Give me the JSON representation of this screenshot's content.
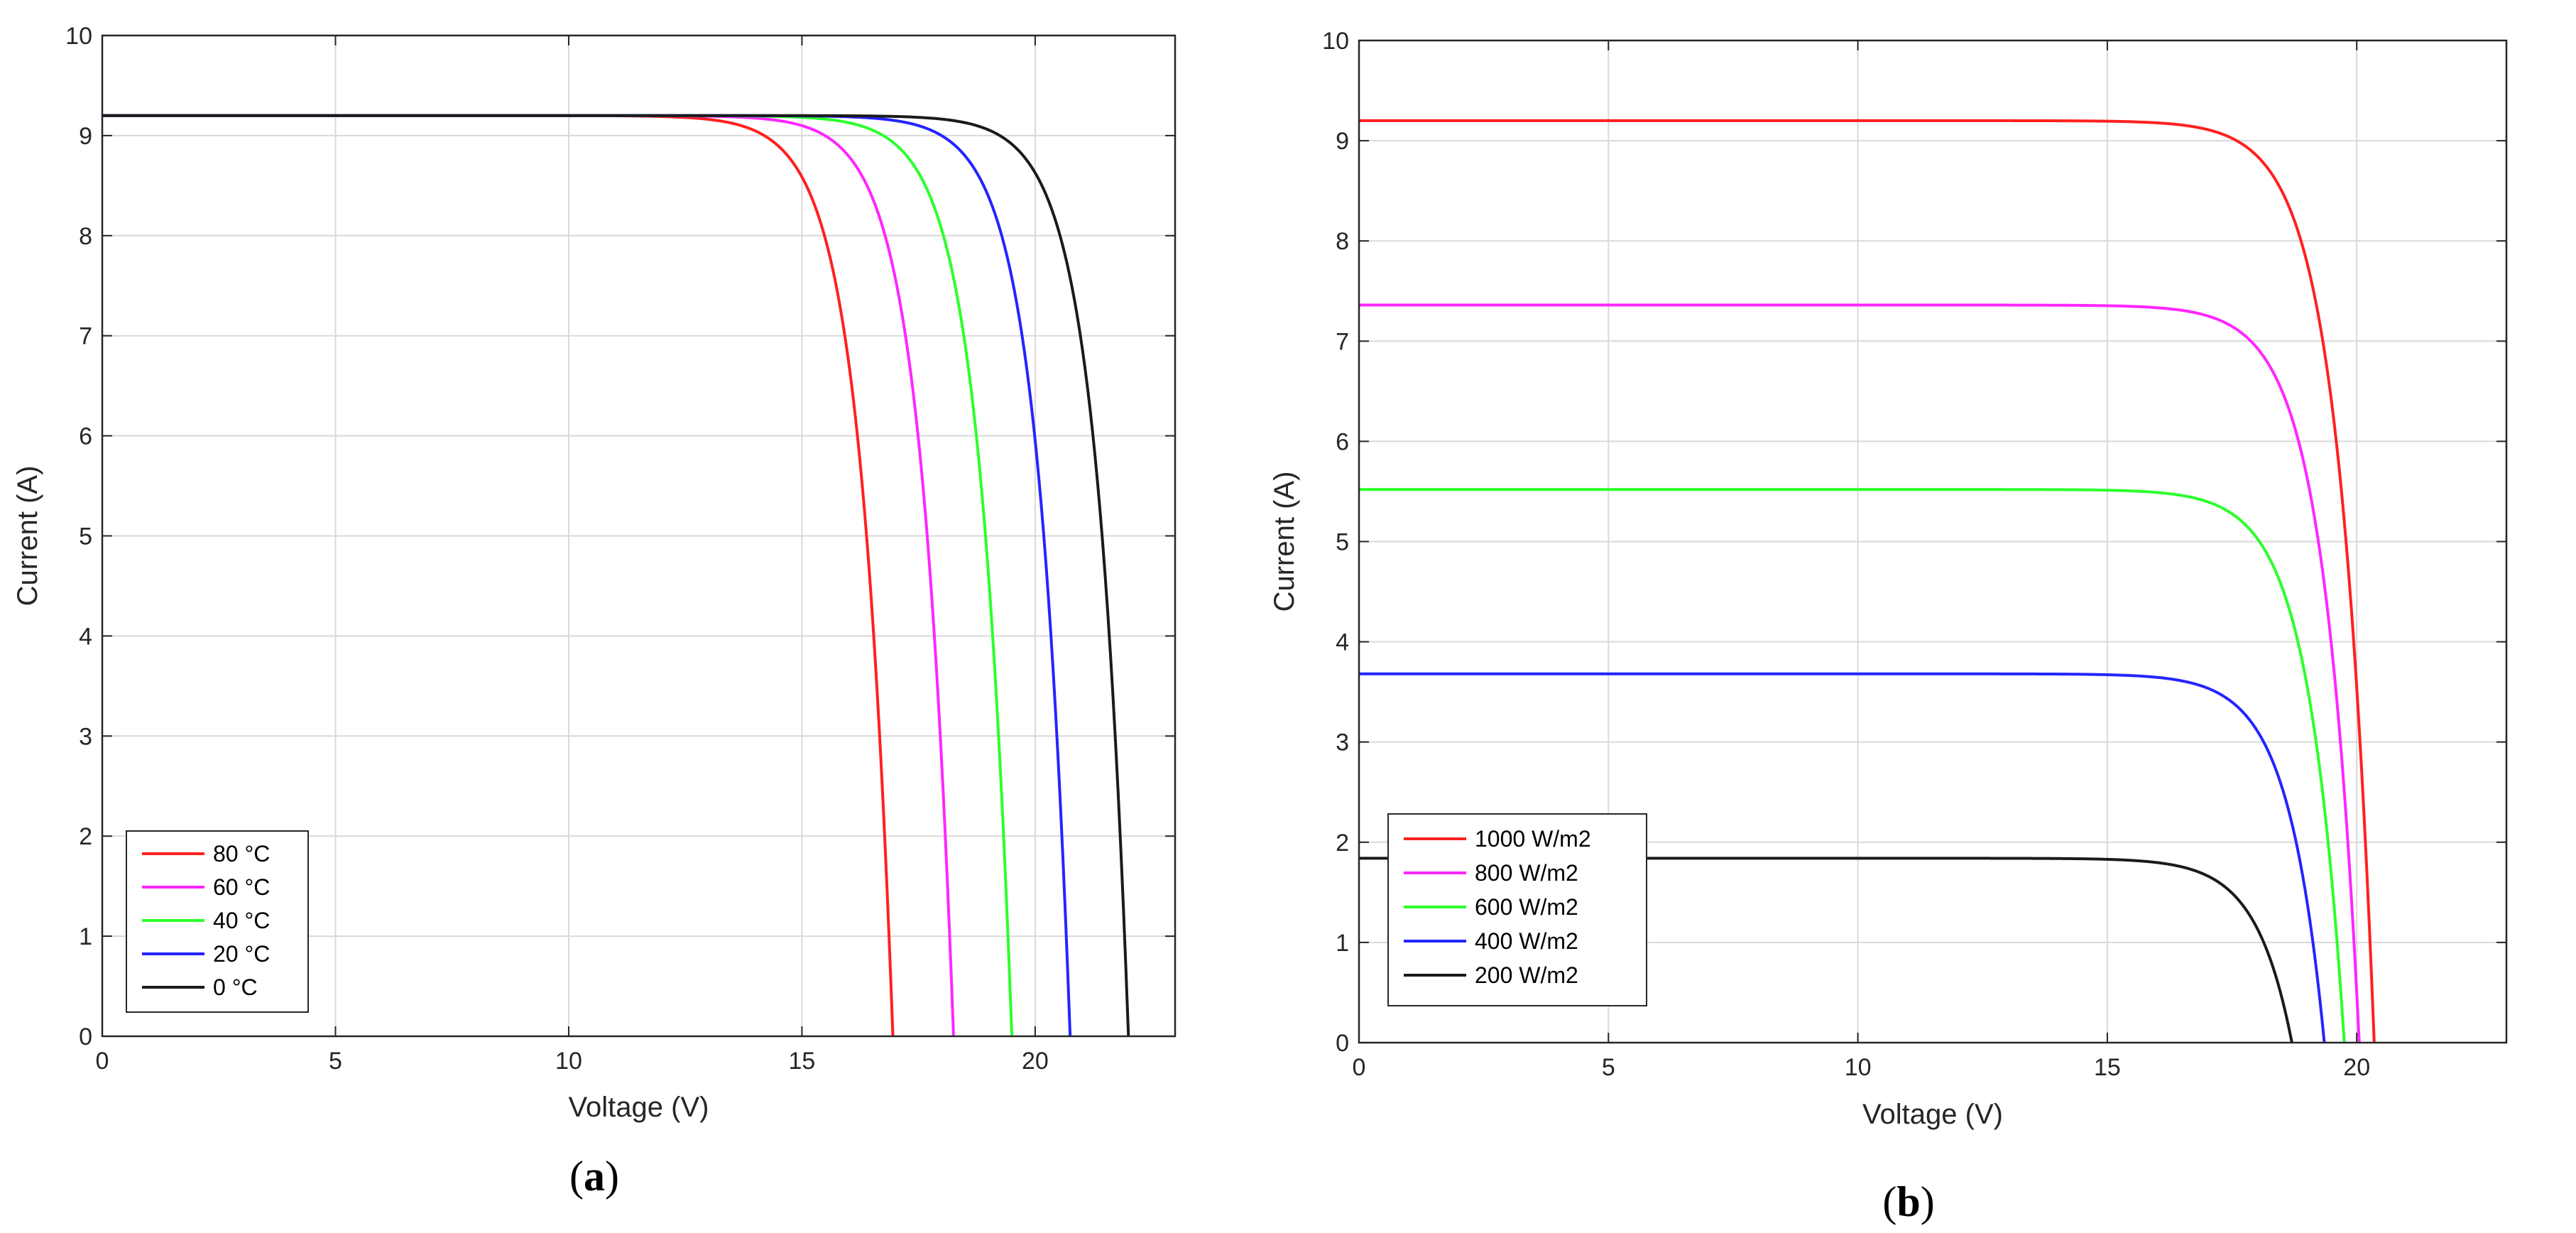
{
  "colors": {
    "red": "#ff2020",
    "magenta": "#ff26ff",
    "green": "#2cff2c",
    "blue": "#2424ff",
    "black": "#1a1a1a",
    "grid": "#d9d9d9",
    "axis": "#262626"
  },
  "chart_data": [
    {
      "id": "a",
      "type": "line",
      "panel_label": "a",
      "title": "",
      "xlabel": "Voltage (V)",
      "ylabel": "Current (A)",
      "xlim": [
        0,
        23
      ],
      "ylim": [
        0,
        10
      ],
      "xticks": [
        0,
        5,
        10,
        15,
        20
      ],
      "yticks": [
        0,
        1,
        2,
        3,
        4,
        5,
        6,
        7,
        8,
        9,
        10
      ],
      "grid": true,
      "legend_position": "bottom-left",
      "series": [
        {
          "name": "80 °C",
          "color": "red",
          "isc": 9.2,
          "voc": 16.95,
          "vt": 0.72
        },
        {
          "name": "60 °C",
          "color": "magenta",
          "isc": 9.2,
          "voc": 18.25,
          "vt": 0.72
        },
        {
          "name": "40 °C",
          "color": "green",
          "isc": 9.2,
          "voc": 19.5,
          "vt": 0.72
        },
        {
          "name": "20 °C",
          "color": "blue",
          "isc": 9.2,
          "voc": 20.75,
          "vt": 0.72
        },
        {
          "name": "0 °C",
          "color": "black",
          "isc": 9.2,
          "voc": 22.0,
          "vt": 0.72
        }
      ]
    },
    {
      "id": "b",
      "type": "line",
      "panel_label": "b",
      "title": "",
      "xlabel": "Voltage (V)",
      "ylabel": "Current (A)",
      "xlim": [
        0,
        23
      ],
      "ylim": [
        0,
        10
      ],
      "xticks": [
        0,
        5,
        10,
        15,
        20
      ],
      "yticks": [
        0,
        1,
        2,
        3,
        4,
        5,
        6,
        7,
        8,
        9,
        10
      ],
      "grid": true,
      "legend_position": "bottom-left",
      "series": [
        {
          "name": "1000 W/m2",
          "color": "red",
          "isc": 9.2,
          "voc": 20.35,
          "vt": 0.72
        },
        {
          "name": "800 W/m2",
          "color": "magenta",
          "isc": 7.36,
          "voc": 20.05,
          "vt": 0.72
        },
        {
          "name": "600 W/m2",
          "color": "green",
          "isc": 5.52,
          "voc": 19.75,
          "vt": 0.72
        },
        {
          "name": "400 W/m2",
          "color": "blue",
          "isc": 3.68,
          "voc": 19.35,
          "vt": 0.72
        },
        {
          "name": "200 W/m2",
          "color": "black",
          "isc": 1.84,
          "voc": 18.7,
          "vt": 0.72
        }
      ]
    }
  ]
}
